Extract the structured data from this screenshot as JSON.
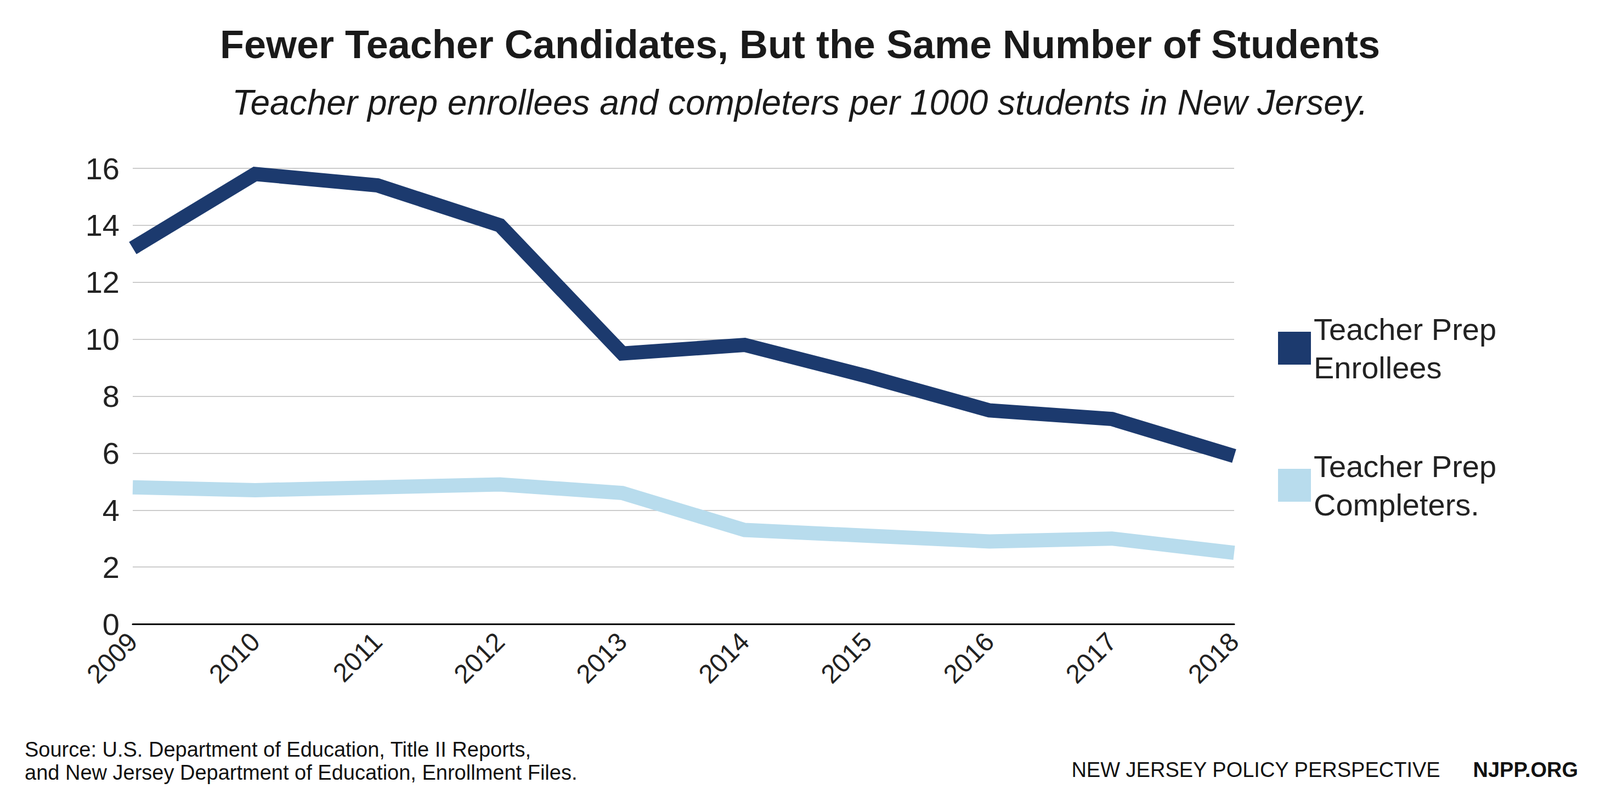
{
  "chart_data": {
    "type": "line",
    "title": "Fewer Teacher Candidates, But the Same Number of Students",
    "subtitle": "Teacher prep enrollees and completers per 1000 students in New Jersey.",
    "categories": [
      "2009",
      "2010",
      "2011",
      "2012",
      "2013",
      "2014",
      "2015",
      "2016",
      "2017",
      "2018"
    ],
    "series": [
      {
        "name": "Teacher Prep Enrollees",
        "color": "#1c3a6e",
        "values": [
          13.2,
          15.8,
          15.4,
          14.0,
          9.5,
          9.8,
          8.7,
          7.5,
          7.2,
          5.9
        ]
      },
      {
        "name": "Teacher Prep Completers.",
        "color": "#b8dced",
        "values": [
          4.8,
          4.7,
          4.8,
          4.9,
          4.6,
          3.3,
          3.1,
          2.9,
          3.0,
          2.5
        ]
      }
    ],
    "ylim": [
      0,
      16
    ],
    "yticks": [
      0,
      2,
      4,
      6,
      8,
      10,
      12,
      14,
      16
    ],
    "grid": true,
    "legend": "right",
    "source": [
      "Source: U.S. Department of Education, Title II Reports,",
      "and New Jersey Department of Education, Enrollment Files."
    ],
    "credits": [
      "NEW JERSEY POLICY PERSPECTIVE",
      "NJPP.ORG"
    ]
  }
}
